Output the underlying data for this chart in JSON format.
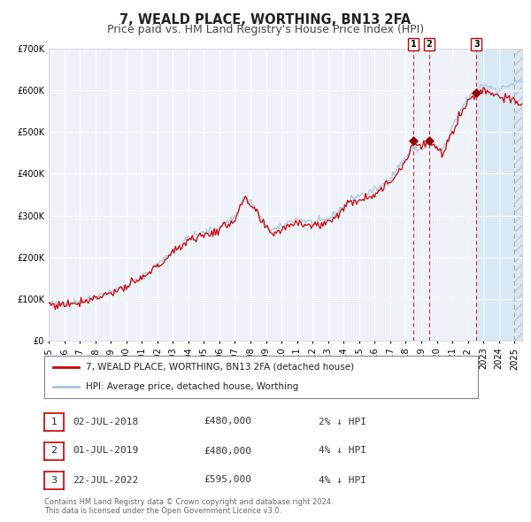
{
  "title": "7, WEALD PLACE, WORTHING, BN13 2FA",
  "subtitle": "Price paid vs. HM Land Registry's House Price Index (HPI)",
  "ylim": [
    0,
    700000
  ],
  "yticks": [
    0,
    100000,
    200000,
    300000,
    400000,
    500000,
    600000,
    700000
  ],
  "ytick_labels": [
    "£0",
    "£100K",
    "£200K",
    "£300K",
    "£400K",
    "£500K",
    "£600K",
    "£700K"
  ],
  "xlim_start": 1995.0,
  "xlim_end": 2025.5,
  "sale_dates": [
    2018.5,
    2019.5,
    2022.55
  ],
  "sale_prices": [
    480000,
    480000,
    595000
  ],
  "sale_labels": [
    "1",
    "2",
    "3"
  ],
  "future_shade_start": 2022.55,
  "legend_label_red": "7, WEALD PLACE, WORTHING, BN13 2FA (detached house)",
  "legend_label_blue": "HPI: Average price, detached house, Worthing",
  "table_rows": [
    [
      "1",
      "02-JUL-2018",
      "£480,000",
      "2% ↓ HPI"
    ],
    [
      "2",
      "01-JUL-2019",
      "£480,000",
      "4% ↓ HPI"
    ],
    [
      "3",
      "22-JUL-2022",
      "£595,000",
      "4% ↓ HPI"
    ]
  ],
  "footer_text": "Contains HM Land Registry data © Crown copyright and database right 2024.\nThis data is licensed under the Open Government Licence v3.0.",
  "hpi_color": "#aac4e0",
  "price_color": "#cc0000",
  "marker_color": "#990000",
  "vline_color": "#cc0000",
  "background_color": "#ffffff",
  "plot_bg_color": "#eef2f8",
  "grid_color": "#ffffff",
  "future_shade_color": "#d8e8f5",
  "title_fontsize": 10.5,
  "subtitle_fontsize": 9,
  "tick_fontsize": 7,
  "legend_fontsize": 7.5,
  "table_fontsize": 8,
  "footer_fontsize": 6
}
